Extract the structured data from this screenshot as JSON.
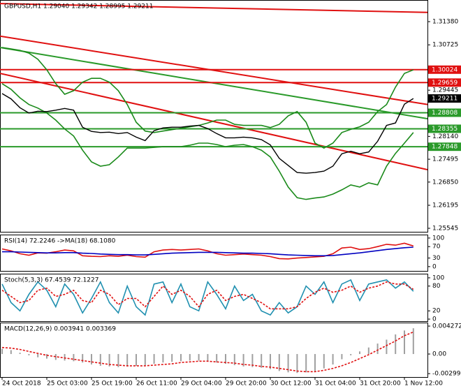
{
  "chart_data": [
    {
      "type": "line",
      "title": "GBPUSD,H1  1.29040 1.29342 1.28995 1.29211",
      "ylim": [
        1.25446,
        1.31991
      ],
      "yticks": [
        {
          "value": 1.3138,
          "label": "1.31380"
        },
        1.30725,
        1.29445,
        {
          "value": 1.2814,
          "label": "1.28140"
        },
        1.27495,
        {
          "value": 1.2685,
          "label": "1.26850"
        },
        1.26195,
        1.25545
      ],
      "trendlines": [
        {
          "color": "#e01010",
          "values": [
            1.3189,
            1.3164
          ]
        },
        {
          "color": "#e01010",
          "values": [
            1.3097,
            1.2904
          ]
        },
        {
          "color": "#e01010",
          "values": [
            1.2992,
            1.272
          ]
        },
        {
          "color": "#2a9a2a",
          "values": [
            1.3065,
            1.2864
          ]
        }
      ],
      "levels": [
        {
          "value": 1.30024,
          "color": "#e01010"
        },
        {
          "value": 1.29659,
          "color": "#e01010"
        },
        {
          "value": 1.28808,
          "color": "#2a9a2a"
        },
        {
          "value": 1.28355,
          "color": "#2a9a2a"
        },
        {
          "value": 1.27848,
          "color": "#2a9a2a"
        }
      ],
      "last": 1.29211,
      "series": [
        {
          "color": "#1a8a1a",
          "values": [
            1.3065,
            1.3061,
            1.3057,
            1.3049,
            1.3032,
            1.3002,
            1.2963,
            1.2933,
            1.2943,
            1.2967,
            1.2978,
            1.2978,
            1.2967,
            1.2943,
            1.2904,
            1.2854,
            1.2829,
            1.2825,
            1.2829,
            1.2833,
            1.2837,
            1.2841,
            1.2845,
            1.2852,
            1.286,
            1.286,
            1.2848,
            1.2845,
            1.2845,
            1.2845,
            1.2839,
            1.2848,
            1.2872,
            1.2884,
            1.2854,
            1.2795,
            1.2781,
            1.2795,
            1.2825,
            1.2834,
            1.2841,
            1.2854,
            1.2884,
            1.2904,
            1.2953,
            1.2992,
            1.3002
          ]
        },
        {
          "color": "#1a8a1a",
          "values": [
            1.2963,
            1.2947,
            1.2923,
            1.2904,
            1.2894,
            1.288,
            1.286,
            1.2835,
            1.2815,
            1.2775,
            1.2742,
            1.273,
            1.2734,
            1.2756,
            1.2781,
            1.2781,
            1.2781,
            1.2783,
            1.2785,
            1.2785,
            1.2785,
            1.2789,
            1.2795,
            1.2795,
            1.2791,
            1.2785,
            1.2789,
            1.2791,
            1.2785,
            1.2775,
            1.2756,
            1.2716,
            1.2671,
            1.2641,
            1.2636,
            1.264,
            1.2643,
            1.2651,
            1.2663,
            1.2677,
            1.2671,
            1.2683,
            1.2677,
            1.273,
            1.2766,
            1.2795,
            1.2825
          ]
        },
        {
          "color": "#000000",
          "values": [
            1.2935,
            1.292,
            1.2895,
            1.288,
            1.2885,
            1.2884,
            1.2888,
            1.2893,
            1.2888,
            1.284,
            1.2828,
            1.2825,
            1.2826,
            1.2822,
            1.2825,
            1.2812,
            1.2802,
            1.283,
            1.2838,
            1.284,
            1.284,
            1.2843,
            1.2845,
            1.2836,
            1.2822,
            1.281,
            1.281,
            1.2812,
            1.281,
            1.2805,
            1.279,
            1.2752,
            1.2732,
            1.2712,
            1.271,
            1.2712,
            1.2716,
            1.273,
            1.2765,
            1.2772,
            1.2765,
            1.277,
            1.28,
            1.2845,
            1.2852,
            1.2905,
            1.2921
          ]
        }
      ]
    },
    {
      "type": "line",
      "title": "RSI(14) 72.2246 ->MA(18) 68.1080",
      "ylim": [
        -15,
        112
      ],
      "yticks": [
        100,
        70,
        30,
        0
      ],
      "series": [
        {
          "color": "#e01010",
          "values": [
            62,
            55,
            45,
            40,
            48,
            47,
            52,
            58,
            55,
            38,
            36,
            35,
            38,
            36,
            40,
            35,
            33,
            52,
            58,
            60,
            58,
            60,
            62,
            55,
            45,
            40,
            42,
            44,
            42,
            40,
            35,
            28,
            27,
            30,
            32,
            34,
            36,
            45,
            65,
            68,
            60,
            63,
            70,
            78,
            75,
            82,
            72.2246
          ]
        },
        {
          "color": "#0000c0",
          "values": [
            52,
            52,
            51,
            50,
            49,
            48,
            48,
            49,
            49,
            47,
            46,
            44,
            43,
            42,
            42,
            41,
            41,
            43,
            45,
            47,
            48,
            49,
            50,
            50,
            50,
            49,
            48,
            47,
            47,
            46,
            45,
            43,
            41,
            40,
            39,
            38,
            38,
            39,
            42,
            45,
            48,
            52,
            56,
            60,
            63,
            66,
            68.108
          ]
        }
      ]
    },
    {
      "type": "line",
      "title": "Stoch(5,3,3) 67.4539 72.1227",
      "ylim": [
        -5,
        110
      ],
      "yticks": [
        100,
        80,
        20,
        0
      ],
      "series": [
        {
          "color": "#2090b0",
          "values": [
            85,
            40,
            20,
            60,
            90,
            70,
            30,
            85,
            60,
            15,
            50,
            90,
            40,
            15,
            80,
            30,
            10,
            85,
            90,
            40,
            85,
            30,
            20,
            90,
            60,
            25,
            80,
            45,
            60,
            20,
            10,
            40,
            15,
            30,
            80,
            60,
            90,
            40,
            85,
            95,
            45,
            85,
            90,
            95,
            75,
            90,
            67.4539
          ]
        },
        {
          "color": "#e01010",
          "dashed": true,
          "values": [
            70,
            55,
            40,
            45,
            70,
            75,
            55,
            60,
            70,
            45,
            40,
            70,
            60,
            35,
            50,
            50,
            30,
            55,
            80,
            60,
            70,
            55,
            30,
            60,
            70,
            45,
            55,
            60,
            50,
            40,
            25,
            25,
            25,
            30,
            50,
            65,
            75,
            65,
            70,
            80,
            65,
            75,
            80,
            90,
            85,
            85,
            72.1227
          ]
        }
      ]
    },
    {
      "type": "macd",
      "title": "MACD(12,26,9) 0.003941 0.003369",
      "ylim": [
        -0.00352,
        0.00481
      ],
      "yticks": [
        0.004272,
        {
          "value": 0,
          "label": "0.00"
        },
        -0.002999
      ],
      "categories": [
        "24 Oct 2018",
        null,
        null,
        null,
        null,
        "25 Oct 03:00",
        null,
        null,
        null,
        null,
        "25 Oct 19:00",
        null,
        null,
        null,
        null,
        "26 Oct 11:00",
        null,
        null,
        null,
        null,
        "29 Oct 04:00",
        null,
        null,
        null,
        null,
        "29 Oct 20:00",
        null,
        null,
        null,
        null,
        "30 Oct 12:00",
        null,
        null,
        null,
        null,
        "31 Oct 04:00",
        null,
        null,
        null,
        null,
        "31 Oct 20:00",
        null,
        null,
        null,
        null,
        "1 Nov 12:00",
        null
      ],
      "series": [
        {
          "color": "#a0a0a0",
          "bars": true,
          "values": [
            0.0008,
            0.0006,
            0.0002,
            -0.0002,
            -0.0005,
            -0.0007,
            -0.0009,
            -0.001,
            -0.0011,
            -0.0013,
            -0.0016,
            -0.0018,
            -0.0019,
            -0.002,
            -0.0019,
            -0.0018,
            -0.0017,
            -0.0015,
            -0.0013,
            -0.0012,
            -0.0011,
            -0.001,
            -0.001,
            -0.0011,
            -0.0013,
            -0.0015,
            -0.0017,
            -0.0019,
            -0.002,
            -0.0021,
            -0.0023,
            -0.0026,
            -0.0028,
            -0.0029,
            -0.0028,
            -0.0026,
            -0.0022,
            -0.0016,
            -0.0008,
            -0.0002,
            0.0004,
            0.001,
            0.0016,
            0.0022,
            0.003,
            0.0036,
            0.003941
          ]
        },
        {
          "color": "#e01010",
          "dashed": true,
          "values": [
            0.001,
            0.0009,
            0.0007,
            0.0004,
            0.0001,
            -0.0002,
            -0.0004,
            -0.0006,
            -0.0008,
            -0.001,
            -0.0012,
            -0.0014,
            -0.0016,
            -0.0017,
            -0.0018,
            -0.0018,
            -0.0018,
            -0.0017,
            -0.0016,
            -0.0015,
            -0.0013,
            -0.0012,
            -0.0011,
            -0.0011,
            -0.0012,
            -0.0013,
            -0.0014,
            -0.0016,
            -0.0017,
            -0.0019,
            -0.002,
            -0.0022,
            -0.0024,
            -0.0026,
            -0.0027,
            -0.0027,
            -0.0025,
            -0.0022,
            -0.0018,
            -0.0013,
            -0.0007,
            -0.0001,
            0.0006,
            0.0013,
            0.002,
            0.0028,
            0.003369
          ]
        }
      ]
    }
  ]
}
